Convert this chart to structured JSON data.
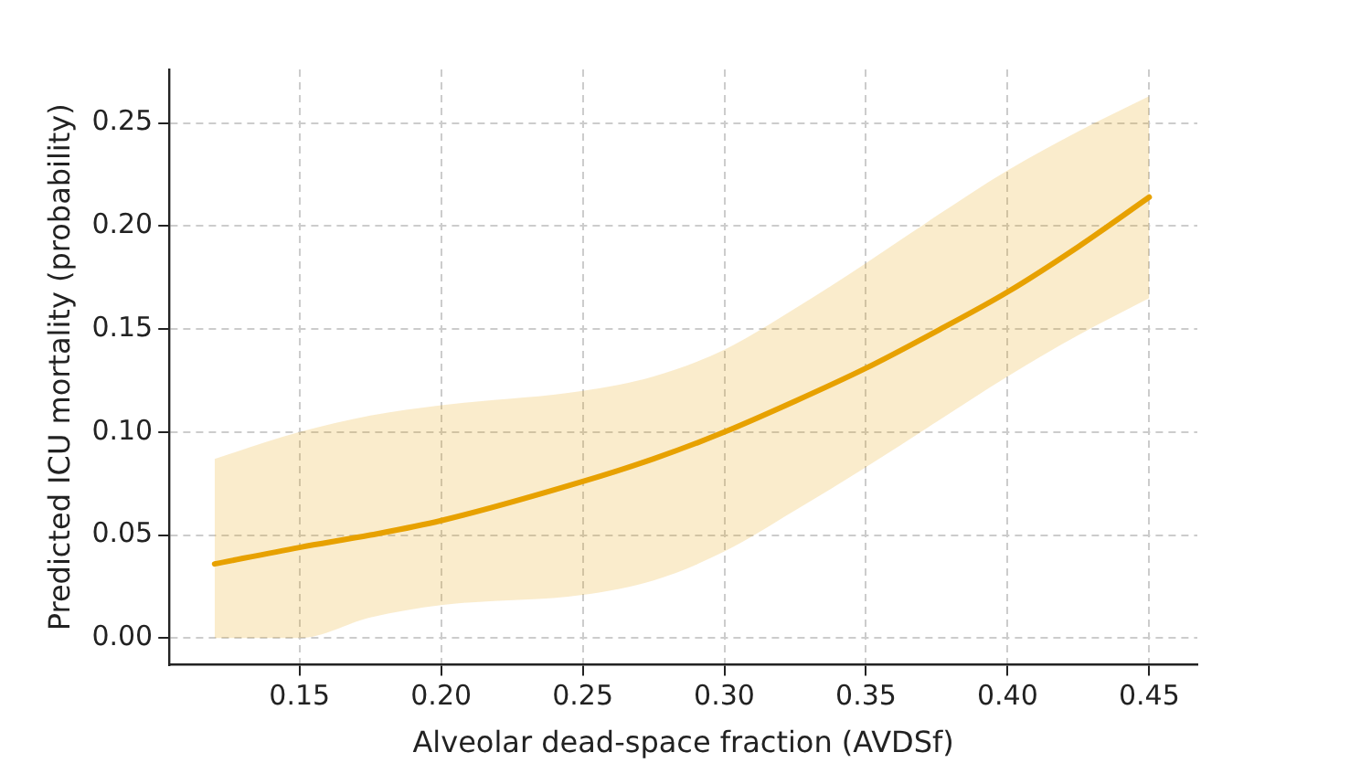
{
  "chart_data": {
    "type": "line",
    "xlabel": "Alveolar dead-space fraction (AVDSf)",
    "ylabel": "Predicted ICU mortality (probability)",
    "xlim": [
      0.104,
      0.467
    ],
    "xticks": [
      0.15,
      {
        "value": 0.2,
        "label": "0.20"
      },
      0.25,
      {
        "value": 0.3,
        "label": "0.30"
      },
      0.35,
      {
        "value": 0.4,
        "label": "0.40"
      },
      0.45
    ],
    "ylim": [
      -0.013,
      0.276
    ],
    "yticks": [
      {
        "value": 0,
        "label": "0.00"
      },
      0.05,
      {
        "value": 0.1,
        "label": "0.10"
      },
      0.15,
      {
        "value": 0.2,
        "label": "0.20"
      },
      0.25
    ],
    "grid": true,
    "line_style": "solid",
    "marker": "none",
    "series": [
      {
        "color": "#e8a200",
        "x": [
          0.12,
          0.15,
          0.175,
          0.2,
          0.25,
          0.275,
          0.3,
          0.325,
          0.35,
          0.375,
          0.4,
          0.425,
          0.45
        ],
        "values": [
          0.036,
          0.044,
          0.05,
          0.057,
          0.076,
          0.087,
          0.1,
          0.115,
          0.131,
          0.149,
          0.168,
          0.19,
          0.214
        ],
        "lower": [
          0.0,
          0.0,
          0.01,
          0.016,
          0.021,
          0.028,
          0.042,
          0.062,
          0.083,
          0.105,
          0.127,
          0.147,
          0.165
        ],
        "upper": [
          0.087,
          0.1,
          0.108,
          0.113,
          0.12,
          0.127,
          0.14,
          0.16,
          0.182,
          0.205,
          0.227,
          0.246,
          0.263
        ]
      }
    ]
  }
}
